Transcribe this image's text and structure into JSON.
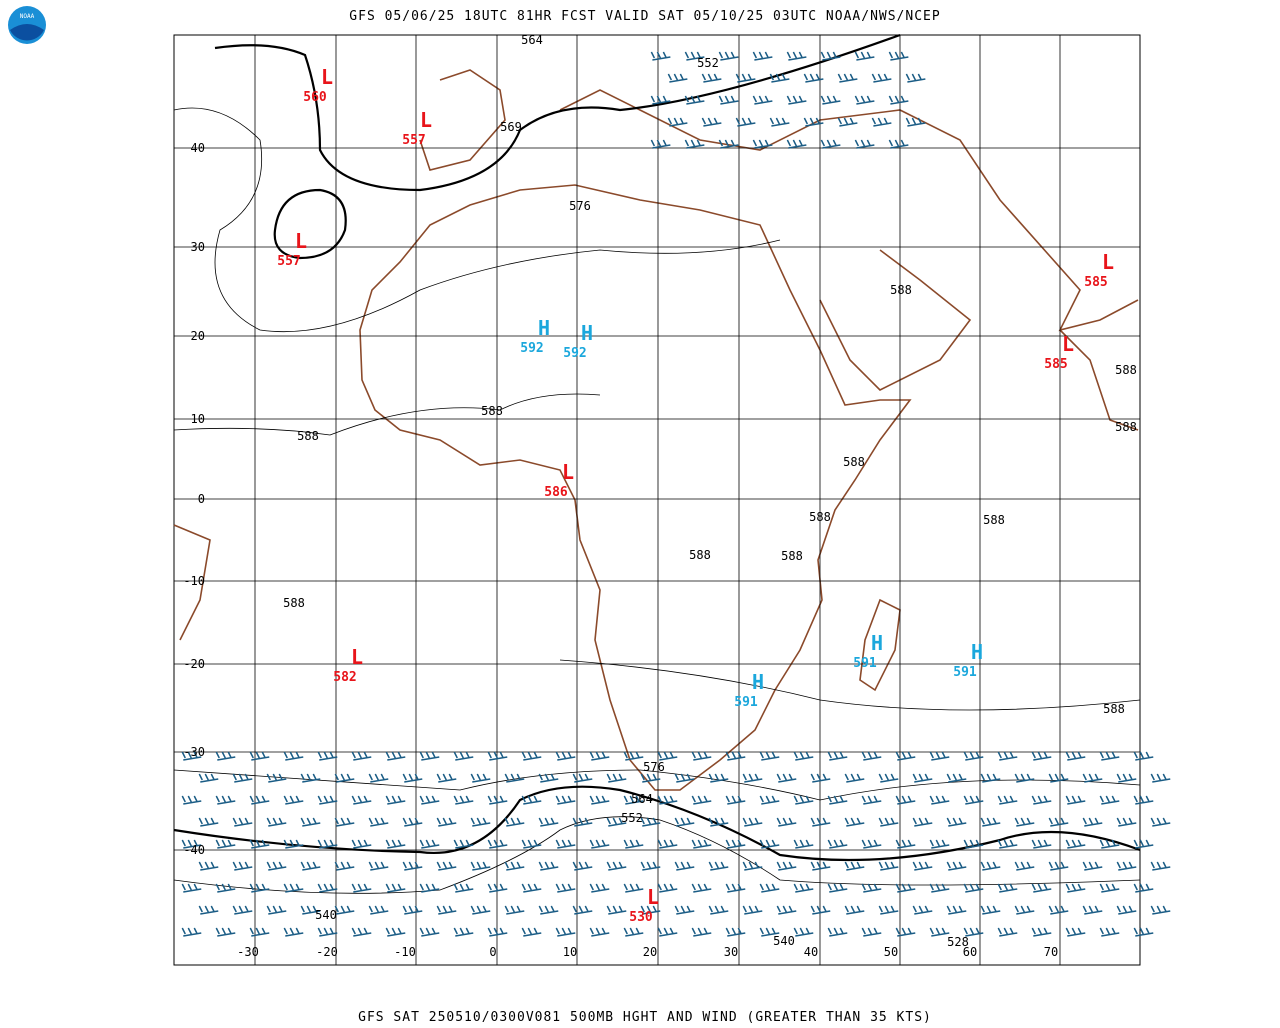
{
  "header": {
    "title": "GFS 05/06/25 18UTC 81HR FCST VALID SAT 05/10/25 03UTC NOAA/NWS/NCEP"
  },
  "footer": {
    "caption": "GFS SAT 250510/0300V081 500MB HGHT AND WIND (GREATER THAN 35 KTS)"
  },
  "logo": {
    "label": "NOAA"
  },
  "map": {
    "lat_labels": [
      "40",
      "30",
      "20",
      "10",
      "0",
      "-10",
      "-20",
      "-30",
      "-40"
    ],
    "lon_labels": [
      "-30",
      "-20",
      "-10",
      "0",
      "10",
      "20",
      "30",
      "40",
      "50",
      "60",
      "70"
    ],
    "systems": [
      {
        "symbol": "L",
        "value": "560"
      },
      {
        "symbol": "L",
        "value": "557"
      },
      {
        "symbol": "L",
        "value": "557"
      },
      {
        "symbol": "H",
        "value": "592"
      },
      {
        "symbol": "H",
        "value": "592"
      },
      {
        "symbol": "L",
        "value": "585"
      },
      {
        "symbol": "L",
        "value": "585"
      },
      {
        "symbol": "L",
        "value": "586"
      },
      {
        "symbol": "L",
        "value": "582"
      },
      {
        "symbol": "H",
        "value": "591"
      },
      {
        "symbol": "H",
        "value": "591"
      },
      {
        "symbol": "H",
        "value": "591"
      },
      {
        "symbol": "L",
        "value": "530"
      }
    ],
    "contour_labels": [
      "564",
      "552",
      "569",
      "576",
      "588",
      "588",
      "588",
      "588",
      "588",
      "588",
      "588",
      "588",
      "588",
      "588",
      "588",
      "588",
      "576",
      "564",
      "552",
      "540",
      "540",
      "528"
    ]
  }
}
